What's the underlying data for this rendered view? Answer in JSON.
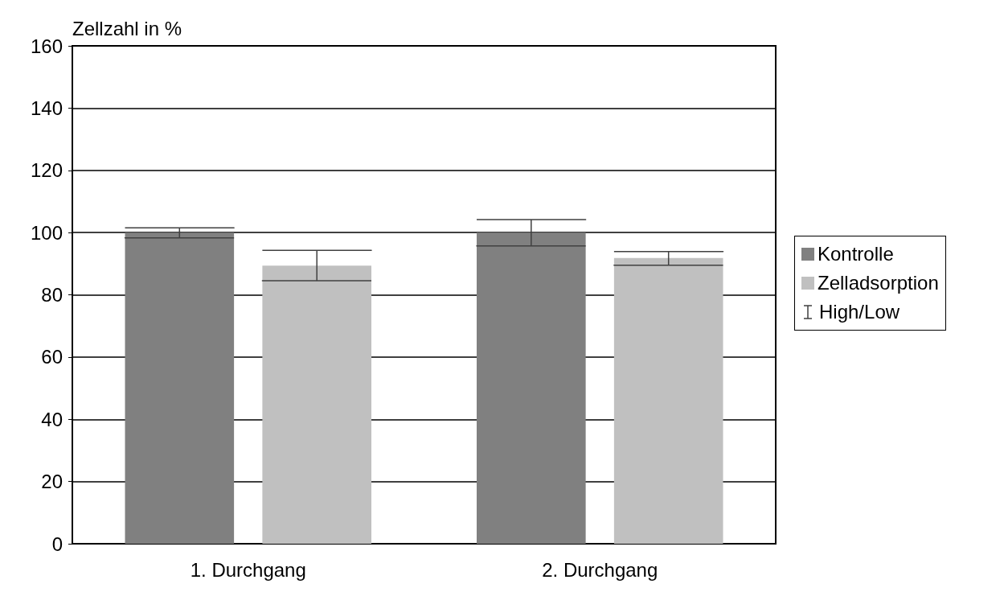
{
  "chart_data": {
    "type": "bar",
    "ylabel": "Zellzahl in %",
    "categories": [
      "1. Durchgang",
      "2. Durchgang"
    ],
    "series": [
      {
        "name": "Kontrolle",
        "color": "#808080",
        "values": [
          100,
          100
        ],
        "errors": [
          [
            98.3,
            101.5
          ],
          [
            95.7,
            104.2
          ]
        ]
      },
      {
        "name": "Zelladsorption",
        "color": "#c0c0c0",
        "values": [
          89.4,
          91.8
        ],
        "errors": [
          [
            84.5,
            94.3
          ],
          [
            89.5,
            93.9
          ]
        ]
      }
    ],
    "annotations": [
      "High/Low"
    ],
    "ylim": [
      0,
      160
    ],
    "yticks": [
      0,
      20,
      40,
      60,
      80,
      100,
      120,
      140,
      160
    ],
    "grid": "y",
    "legend": "right"
  }
}
